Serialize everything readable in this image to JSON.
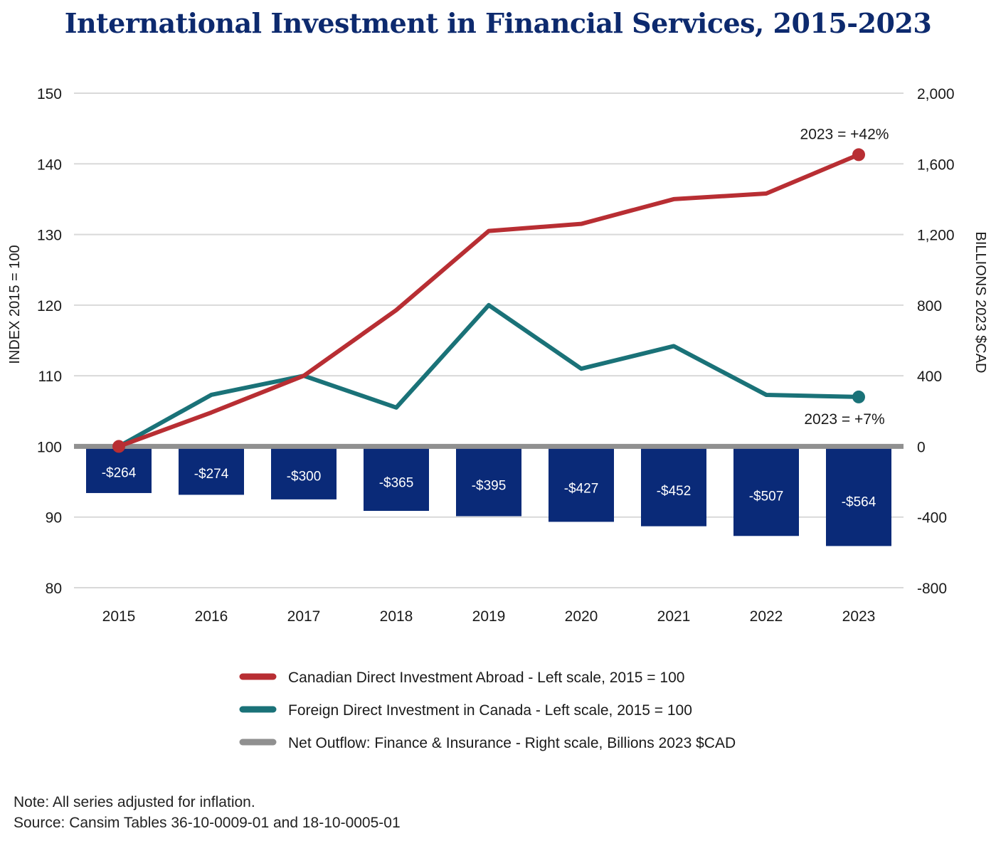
{
  "title": "International Investment in Financial Services, 2015-2023",
  "colors": {
    "cdia": "#b82e33",
    "fdi": "#1a7278",
    "net": "#909090",
    "bars": "#0a2a78",
    "title": "#0d2a6e",
    "grid": "#d9d9d9"
  },
  "chart_data": {
    "type": "bar+line",
    "categories": [
      "2015",
      "2016",
      "2017",
      "2018",
      "2019",
      "2020",
      "2021",
      "2022",
      "2023"
    ],
    "left_axis": {
      "label": "INDEX 2015 = 100",
      "range": [
        80,
        150
      ],
      "ticks": [
        "80",
        "90",
        "100",
        "110",
        "120",
        "130",
        "140",
        "150"
      ]
    },
    "right_axis": {
      "label": "BILLIONS 2023 $CAD",
      "range": [
        -800,
        2000
      ],
      "ticks": [
        "-800",
        "-400",
        "0",
        "400",
        "800",
        "1,200",
        "1,600",
        "2,000"
      ]
    },
    "series": [
      {
        "name": "Canadian Direct Investment Abroad - Left scale, 2015 = 100",
        "type": "line",
        "axis": "left",
        "color": "#b82e33",
        "values": [
          100,
          104.8,
          110,
          119.3,
          130.5,
          131.5,
          135,
          135.8,
          141.3
        ]
      },
      {
        "name": "Foreign Direct Investment in Canada - Left scale, 2015 = 100",
        "type": "line",
        "axis": "left",
        "color": "#1a7278",
        "values": [
          100,
          107.3,
          110,
          105.5,
          120,
          111,
          114.2,
          107.3,
          107
        ]
      },
      {
        "name": "Net Outflow: Finance & Insurance - Right scale, Billions 2023 $CAD",
        "type": "bar",
        "axis": "right",
        "color": "#0a2a78",
        "values": [
          -264,
          -274,
          -300,
          -365,
          -395,
          -427,
          -452,
          -507,
          -564
        ],
        "labels": [
          "-$264",
          "-$274",
          "-$300",
          "-$365",
          "-$395",
          "-$427",
          "-$452",
          "-$507",
          "-$564"
        ]
      }
    ],
    "annotations": [
      {
        "text": "2023 = +42%",
        "series": 0,
        "color": "#b82e33"
      },
      {
        "text": "2023 = +7%",
        "series": 1,
        "color": "#1a7278"
      }
    ],
    "grid": true,
    "legend_position": "bottom"
  },
  "notes": [
    "Note: All series adjusted for inflation.",
    "Source: Cansim Tables 36-10-0009-01 and 18-10-0005-01"
  ]
}
